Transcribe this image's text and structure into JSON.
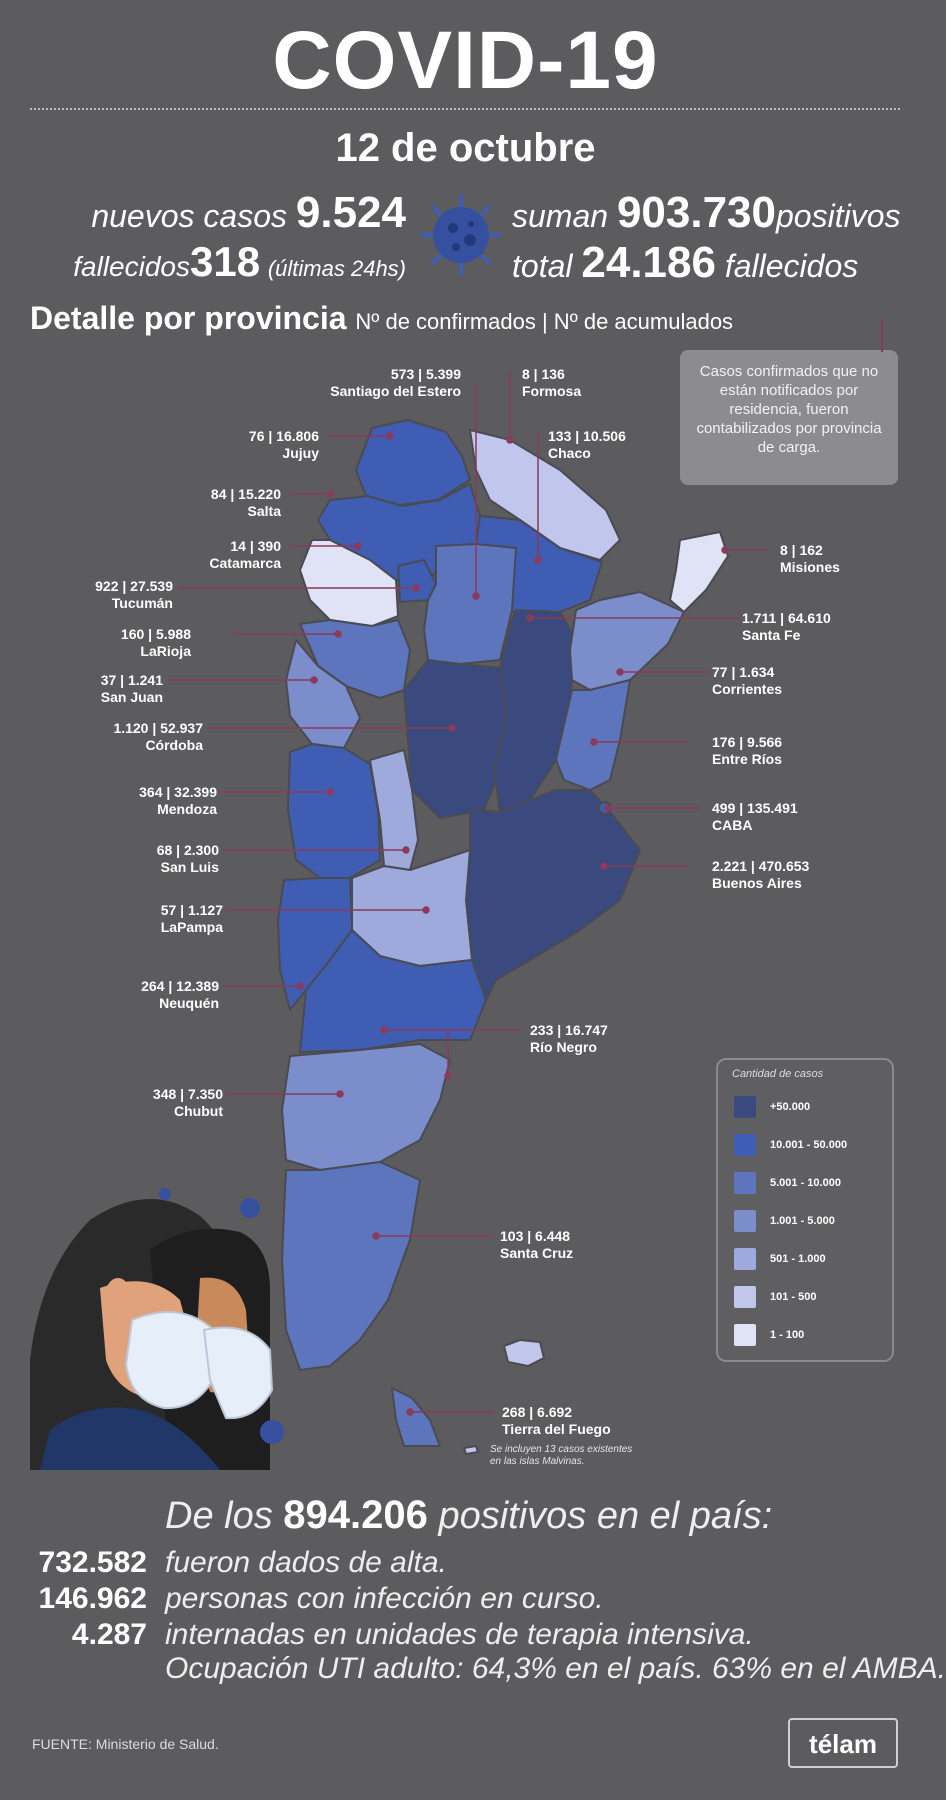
{
  "title": "COVID-19",
  "date": "12 de octubre",
  "stats": {
    "new_cases_label": "nuevos casos",
    "new_cases": "9.524",
    "deaths_label": "fallecidos",
    "deaths": "318",
    "deaths_note": "(últimas 24hs)",
    "total_positive_prefix": "suman",
    "total_positive": "903.730",
    "total_positive_suffix": "positivos",
    "total_deaths_prefix": "total",
    "total_deaths": "24.186",
    "total_deaths_suffix": "fallecidos"
  },
  "detail": {
    "heading": "Detalle por provincia",
    "subheading": "Nº de confirmados | Nº de acumulados"
  },
  "note": "Casos confirmados que no están notificados por residencia, fueron contabilizados por provincia de carga.",
  "provinces": [
    {
      "name": "Santiago del Estero",
      "value": "573 | 5.399"
    },
    {
      "name": "Formosa",
      "value": "8 | 136"
    },
    {
      "name": "Jujuy",
      "value": "76 | 16.806"
    },
    {
      "name": "Chaco",
      "value": "133 | 10.506"
    },
    {
      "name": "Salta",
      "value": "84 | 15.220"
    },
    {
      "name": "Catamarca",
      "value": "14 | 390"
    },
    {
      "name": "Misiones",
      "value": "8 | 162"
    },
    {
      "name": "Tucumán",
      "value": "922 | 27.539"
    },
    {
      "name": "Santa Fe",
      "value": "1.711 | 64.610"
    },
    {
      "name": "LaRioja",
      "value": "160 | 5.988"
    },
    {
      "name": "San Juan",
      "value": "37 | 1.241"
    },
    {
      "name": "Corrientes",
      "value": "77 | 1.634"
    },
    {
      "name": "Córdoba",
      "value": "1.120 | 52.937"
    },
    {
      "name": "Entre Ríos",
      "value": "176 | 9.566"
    },
    {
      "name": "Mendoza",
      "value": "364 | 32.399"
    },
    {
      "name": "CABA",
      "value": "499 | 135.491"
    },
    {
      "name": "San Luis",
      "value": "68 | 2.300"
    },
    {
      "name": "Buenos Aires",
      "value": "2.221 | 470.653"
    },
    {
      "name": "LaPampa",
      "value": "57 | 1.127"
    },
    {
      "name": "Neuquén",
      "value": "264 | 12.389"
    },
    {
      "name": "Río Negro",
      "value": "233 | 16.747"
    },
    {
      "name": "Chubut",
      "value": "348 | 7.350"
    },
    {
      "name": "Santa Cruz",
      "value": "103 | 6.448"
    },
    {
      "name": "Tierra del Fuego",
      "value": "268 | 6.692"
    }
  ],
  "malvinas_note_1": "Se incluyen 13 casos existentes",
  "malvinas_note_2": "en las islas Malvinas.",
  "legend": {
    "title": "Cantidad de casos",
    "items": [
      {
        "label": "+50.000",
        "color": "#3a4a7e"
      },
      {
        "label": "10.001 - 50.000",
        "color": "#3f5db3"
      },
      {
        "label": "5.001 - 10.000",
        "color": "#5c75bd"
      },
      {
        "label": "1.001 - 5.000",
        "color": "#7b8dcb"
      },
      {
        "label": "501 - 1.000",
        "color": "#9ea9dc"
      },
      {
        "label": "101 - 500",
        "color": "#c1c7ec"
      },
      {
        "label": "1 - 100",
        "color": "#e0e3f6"
      }
    ]
  },
  "summary": {
    "lead_prefix": "De los",
    "lead_number": "894.206",
    "lead_suffix": "positivos en el país:",
    "rows": [
      {
        "number": "732.582",
        "text": "fueron dados de alta."
      },
      {
        "number": "146.962",
        "text": "personas con infección en curso."
      },
      {
        "number": "4.287",
        "text": "internadas en unidades de terapia intensiva."
      }
    ],
    "occupancy": "Ocupación UTI adulto: 64,3% en el país. 63% en el AMBA."
  },
  "source": "FUENTE: Ministerio de Salud.",
  "brand": "télam"
}
